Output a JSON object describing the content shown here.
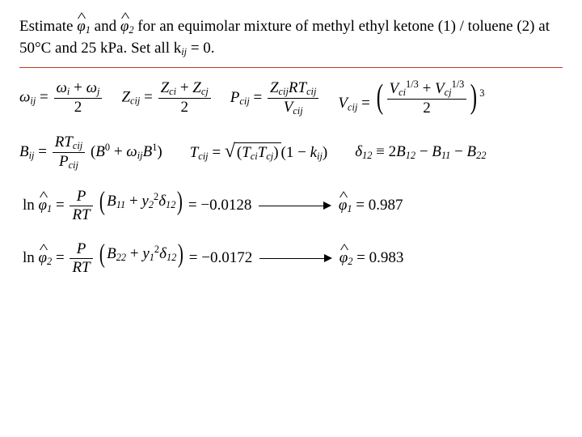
{
  "problem": {
    "pre": "Estimate ",
    "phi1": "φ̂",
    "phi1_sub": "1",
    "mid": " and ",
    "phi2": "φ̂",
    "phi2_sub": "2",
    "post": " for an equimolar mixture of methyl ethyl ketone (1) / toluene (2) at 50°C and 25 kPa. Set all k",
    "kij_sub": "ij",
    "tail": " = 0."
  },
  "row1": {
    "omega_ij": {
      "lhs": "ω",
      "lhs_sub": "ij",
      "num_a": "ω",
      "num_a_sub": "i",
      "plus": " + ",
      "num_b": "ω",
      "num_b_sub": "j",
      "den": "2"
    },
    "zc_ij": {
      "lhs": "Z",
      "lhs_sub": "cij",
      "num_a": "Z",
      "num_a_sub": "ci",
      "plus": " + ",
      "num_b": "Z",
      "num_b_sub": "cj",
      "den": "2"
    },
    "pc_ij": {
      "lhs": "P",
      "lhs_sub": "cij",
      "num_a": "Z",
      "num_a_sub": "cij",
      "num_b": "RT",
      "num_b_sub": "cij",
      "den_a": "V",
      "den_a_sub": "cij"
    },
    "vc_ij": {
      "lhs": "V",
      "lhs_sub": "cij",
      "a": "V",
      "a_sub": "ci",
      "a_sup": "1/3",
      "plus": " + ",
      "b": "V",
      "b_sub": "cj",
      "b_sup": "1/3",
      "den": "2",
      "outer_sup": "3"
    }
  },
  "row2": {
    "bij": {
      "lhs": "B",
      "lhs_sub": "ij",
      "num_a": "RT",
      "num_a_sub": "cij",
      "den_a": "P",
      "den_a_sub": "cij",
      "l": "(",
      "b0": "B",
      "b0_sup": "0",
      "plus": " + ",
      "om": "ω",
      "om_sub": "ij",
      "b1": "B",
      "b1_sup": "1",
      "r": ")"
    },
    "tcij": {
      "lhs": "T",
      "lhs_sub": "cij",
      "a": "T",
      "a_sub": "ci",
      "b": "T",
      "b_sub": "cj",
      "l": "(1 − ",
      "k": "k",
      "k_sub": "ij",
      "r": ")"
    },
    "delta12": {
      "lhs": "δ",
      "lhs_sub": "12",
      "eq": " ≡ 2",
      "b12": "B",
      "b12_sub": "12",
      "m1": " − ",
      "b11": "B",
      "b11_sub": "11",
      "m2": " − ",
      "b22": "B",
      "b22_sub": "22"
    }
  },
  "row3": {
    "lnphi1": {
      "ln": "ln ",
      "phi": "φ̂",
      "phi_sub": "1",
      "num": "P",
      "den": "RT",
      "b11": "B",
      "b11_sub": "11",
      "plus": " + ",
      "y": "y",
      "y_sub": "2",
      "y_sup": "2",
      "d": "δ",
      "d_sub": "12",
      "val": " = −0.0128",
      "res_phi": "φ̂",
      "res_sub": "1",
      "res_val": " = 0.987"
    }
  },
  "row4": {
    "lnphi2": {
      "ln": "ln ",
      "phi": "φ̂",
      "phi_sub": "2",
      "num": "P",
      "den": "RT",
      "b22": "B",
      "b22_sub": "22",
      "plus": " + ",
      "y": "y",
      "y_sub": "1",
      "y_sup": "2",
      "d": "δ",
      "d_sub": "12",
      "val": " = −0.0172",
      "res_phi": "φ̂",
      "res_sub": "2",
      "res_val": " = 0.983"
    }
  },
  "style": {
    "hr_color": "#c23a1a",
    "font_family": "Times New Roman",
    "base_fontsize_pt": 14,
    "eq_fontsize_pt": 14,
    "background": "#ffffff",
    "text_color": "#000000"
  }
}
